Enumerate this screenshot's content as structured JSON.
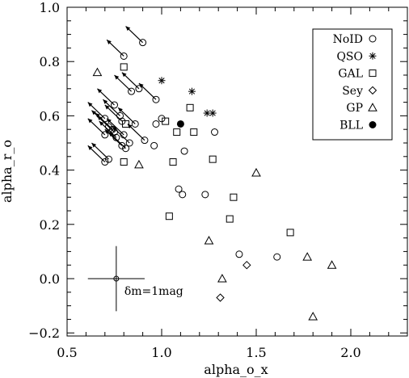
{
  "chart_data": {
    "type": "scatter",
    "title": "",
    "xlabel": "alpha_o_x",
    "ylabel": "alpha_r_o",
    "xlim": [
      0.5,
      2.3
    ],
    "ylim": [
      -0.22,
      1.0
    ],
    "grid": false,
    "legend_position": "top-right",
    "x_ticks": [
      0.5,
      1.0,
      1.5,
      2.0
    ],
    "x_tick_labels": [
      "0.5",
      "1.0",
      "1.5",
      "2.0"
    ],
    "y_ticks": [
      -0.2,
      0.0,
      0.2,
      0.4,
      0.6,
      0.8,
      1.0
    ],
    "y_tick_labels": [
      "−0.2",
      "0.0",
      "0.2",
      "0.4",
      "0.6",
      "0.8",
      "1.0"
    ],
    "series": [
      {
        "name": "NoID",
        "marker": "circle-open",
        "points": [
          [
            0.9,
            0.87
          ],
          [
            0.8,
            0.82
          ],
          [
            0.84,
            0.69
          ],
          [
            0.88,
            0.7
          ],
          [
            0.97,
            0.66
          ],
          [
            0.75,
            0.64
          ],
          [
            0.78,
            0.6
          ],
          [
            0.7,
            0.59
          ],
          [
            0.72,
            0.56
          ],
          [
            0.74,
            0.55
          ],
          [
            0.79,
            0.58
          ],
          [
            0.86,
            0.57
          ],
          [
            0.75,
            0.54
          ],
          [
            0.8,
            0.53
          ],
          [
            0.7,
            0.53
          ],
          [
            0.76,
            0.52
          ],
          [
            0.83,
            0.5
          ],
          [
            0.79,
            0.49
          ],
          [
            0.81,
            0.48
          ],
          [
            0.91,
            0.51
          ],
          [
            0.97,
            0.57
          ],
          [
            1.0,
            0.59
          ],
          [
            0.96,
            0.49
          ],
          [
            1.12,
            0.47
          ],
          [
            0.72,
            0.44
          ],
          [
            0.7,
            0.43
          ],
          [
            1.28,
            0.54
          ],
          [
            1.09,
            0.33
          ],
          [
            1.11,
            0.31
          ],
          [
            1.23,
            0.31
          ],
          [
            1.41,
            0.09
          ],
          [
            1.61,
            0.08
          ]
        ]
      },
      {
        "name": "QSO",
        "marker": "asterisk",
        "points": [
          [
            1.0,
            0.73
          ],
          [
            1.16,
            0.69
          ],
          [
            1.24,
            0.61
          ],
          [
            1.27,
            0.61
          ]
        ]
      },
      {
        "name": "GAL",
        "marker": "square-open",
        "points": [
          [
            0.8,
            0.78
          ],
          [
            1.15,
            0.63
          ],
          [
            1.02,
            0.58
          ],
          [
            0.81,
            0.57
          ],
          [
            1.08,
            0.54
          ],
          [
            1.17,
            0.54
          ],
          [
            0.8,
            0.43
          ],
          [
            1.06,
            0.43
          ],
          [
            1.27,
            0.44
          ],
          [
            1.38,
            0.3
          ],
          [
            1.04,
            0.23
          ],
          [
            1.36,
            0.22
          ],
          [
            1.68,
            0.17
          ]
        ]
      },
      {
        "name": "Sey",
        "marker": "diamond-open",
        "points": [
          [
            1.45,
            0.05
          ],
          [
            1.31,
            -0.07
          ]
        ]
      },
      {
        "name": "GP",
        "marker": "triangle-open",
        "points": [
          [
            0.66,
            0.76
          ],
          [
            0.88,
            0.42
          ],
          [
            1.5,
            0.39
          ],
          [
            1.25,
            0.14
          ],
          [
            1.77,
            0.08
          ],
          [
            1.9,
            0.05
          ],
          [
            1.32,
            0.0
          ],
          [
            1.8,
            -0.14
          ]
        ]
      },
      {
        "name": "BLL",
        "marker": "circle-filled",
        "points": [
          [
            1.1,
            0.57
          ]
        ]
      }
    ],
    "arrows": [
      [
        0.9,
        0.87,
        0.81,
        0.93
      ],
      [
        0.8,
        0.82,
        0.71,
        0.88
      ],
      [
        0.84,
        0.69,
        0.75,
        0.75
      ],
      [
        0.88,
        0.7,
        0.79,
        0.76
      ],
      [
        0.97,
        0.66,
        0.88,
        0.72
      ],
      [
        0.75,
        0.64,
        0.66,
        0.7
      ],
      [
        0.78,
        0.6,
        0.69,
        0.66
      ],
      [
        0.7,
        0.59,
        0.61,
        0.65
      ],
      [
        0.72,
        0.56,
        0.63,
        0.62
      ],
      [
        0.74,
        0.55,
        0.65,
        0.61
      ],
      [
        0.79,
        0.58,
        0.7,
        0.64
      ],
      [
        0.86,
        0.57,
        0.77,
        0.63
      ],
      [
        0.75,
        0.54,
        0.66,
        0.6
      ],
      [
        0.8,
        0.53,
        0.71,
        0.59
      ],
      [
        0.7,
        0.53,
        0.61,
        0.59
      ],
      [
        0.76,
        0.52,
        0.67,
        0.58
      ],
      [
        0.83,
        0.5,
        0.74,
        0.56
      ],
      [
        0.79,
        0.49,
        0.7,
        0.55
      ],
      [
        0.81,
        0.48,
        0.72,
        0.54
      ],
      [
        0.91,
        0.51,
        0.82,
        0.57
      ],
      [
        0.72,
        0.44,
        0.63,
        0.5
      ],
      [
        0.7,
        0.43,
        0.61,
        0.49
      ]
    ],
    "error_bar": {
      "center": [
        0.76,
        0.0
      ],
      "x_err": 0.15,
      "y_err": 0.12,
      "label": "δm=1mag"
    }
  }
}
